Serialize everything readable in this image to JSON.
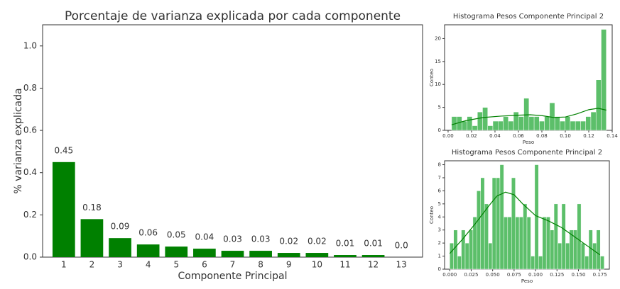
{
  "chart_data": [
    {
      "type": "bar",
      "title": "Porcentaje de varianza explicada por cada componente",
      "x_label": "Componente Principal",
      "y_label": "% varianza explicada",
      "categories": [
        "1",
        "2",
        "3",
        "4",
        "5",
        "6",
        "7",
        "8",
        "9",
        "10",
        "11",
        "12",
        "13"
      ],
      "values": [
        0.45,
        0.18,
        0.09,
        0.06,
        0.05,
        0.04,
        0.03,
        0.03,
        0.02,
        0.02,
        0.01,
        0.01,
        0.0
      ],
      "value_labels": [
        "0.45",
        "0.18",
        "0.09",
        "0.06",
        "0.05",
        "0.04",
        "0.03",
        "0.03",
        "0.02",
        "0.02",
        "0.01",
        "0.01",
        "0.0"
      ],
      "color": "#008000",
      "ylim": [
        0,
        1.1
      ],
      "yticks": [
        {
          "value": 0,
          "label": "0.0"
        },
        0.2,
        0.4,
        0.6,
        0.8,
        {
          "value": 1,
          "label": "1.0"
        }
      ]
    },
    {
      "type": "histogram",
      "title": "Histograma Pesos Componente Principal 2",
      "x_label": "Peso",
      "y_label": "Conteo",
      "color": "#5cbf6a",
      "line_color": "#008000",
      "bins": [
        0.003,
        0.0074,
        0.0118,
        0.0162,
        0.0206,
        0.025,
        0.0294,
        0.0338,
        0.0382,
        0.0426,
        0.047,
        0.0514,
        0.0558,
        0.0602,
        0.0646,
        0.069,
        0.0734,
        0.0778,
        0.0822,
        0.0866,
        0.091,
        0.0954,
        0.0998,
        0.1042,
        0.1086,
        0.113,
        0.1174,
        0.1218,
        0.1262,
        0.1306,
        0.135
      ],
      "values": [
        3,
        3,
        2,
        3,
        1,
        4,
        5,
        1,
        2,
        2,
        3,
        2,
        4,
        3,
        7,
        3,
        3,
        2,
        3,
        6,
        3,
        2,
        3,
        2,
        2,
        2,
        3,
        4,
        11,
        22
      ],
      "kde": {
        "x": [
          0.003,
          0.015,
          0.03,
          0.045,
          0.06,
          0.07,
          0.08,
          0.09,
          0.1,
          0.11,
          0.12,
          0.128,
          0.135
        ],
        "y": [
          1.2,
          2.1,
          2.8,
          3.1,
          3.3,
          3.4,
          3.2,
          2.8,
          2.9,
          3.6,
          4.5,
          4.8,
          4.4
        ]
      },
      "xlim": [
        -0.003,
        0.14
      ],
      "ylim": [
        0,
        23
      ],
      "xticks": [
        {
          "value": 0,
          "label": "0.00"
        },
        {
          "value": 0.02,
          "label": "0.02"
        },
        {
          "value": 0.04,
          "label": "0.04"
        },
        {
          "value": 0.06,
          "label": "0.06"
        },
        {
          "value": 0.08,
          "label": "0.08"
        },
        {
          "value": 0.1,
          "label": "0.10"
        },
        {
          "value": 0.12,
          "label": "0.12"
        },
        {
          "value": 0.14,
          "label": "0.14"
        }
      ],
      "yticks": [
        0,
        5,
        10,
        15,
        20
      ]
    },
    {
      "type": "histogram",
      "title": "Histograma Pesos Componente Principal 2",
      "x_label": "Peso",
      "y_label": "Conteo",
      "color": "#5cbf6a",
      "line_color": "#008000",
      "bins": [
        0,
        0.0045,
        0.009,
        0.0135,
        0.018,
        0.0225,
        0.027,
        0.0315,
        0.036,
        0.0405,
        0.045,
        0.0495,
        0.054,
        0.0585,
        0.063,
        0.0675,
        0.072,
        0.0765,
        0.081,
        0.0855,
        0.09,
        0.0945,
        0.099,
        0.1035,
        0.108,
        0.1125,
        0.117,
        0.1215,
        0.126,
        0.1305,
        0.135,
        0.1395,
        0.144,
        0.1485,
        0.153,
        0.1575,
        0.162,
        0.1665,
        0.171,
        0.1755,
        0.18
      ],
      "values": [
        2,
        3,
        1,
        3,
        2,
        3,
        4,
        6,
        7,
        5,
        2,
        7,
        7,
        8,
        4,
        4,
        7,
        4,
        4,
        5,
        4,
        1,
        8,
        1,
        4,
        4,
        3,
        5,
        2,
        5,
        2,
        3,
        3,
        5,
        2,
        1,
        3,
        2,
        3,
        1
      ],
      "kde": {
        "x": [
          0,
          0.015,
          0.03,
          0.045,
          0.055,
          0.065,
          0.075,
          0.085,
          0.1,
          0.115,
          0.13,
          0.145,
          0.16,
          0.175
        ],
        "y": [
          1.2,
          2.3,
          3.5,
          4.8,
          5.6,
          5.9,
          5.7,
          5,
          4.1,
          3.7,
          3.2,
          2.5,
          1.8,
          1.1
        ]
      },
      "xlim": [
        -0.006,
        0.186
      ],
      "ylim": [
        0,
        8.3
      ],
      "xticks": [
        {
          "value": 0,
          "label": "0.000"
        },
        {
          "value": 0.025,
          "label": "0.025"
        },
        {
          "value": 0.05,
          "label": "0.050"
        },
        {
          "value": 0.075,
          "label": "0.075"
        },
        {
          "value": 0.1,
          "label": "0.100"
        },
        {
          "value": 0.125,
          "label": "0.125"
        },
        {
          "value": 0.15,
          "label": "0.150"
        },
        {
          "value": 0.175,
          "label": "0.175"
        }
      ],
      "yticks": [
        0,
        1,
        2,
        3,
        4,
        5,
        6,
        7,
        8
      ]
    }
  ]
}
